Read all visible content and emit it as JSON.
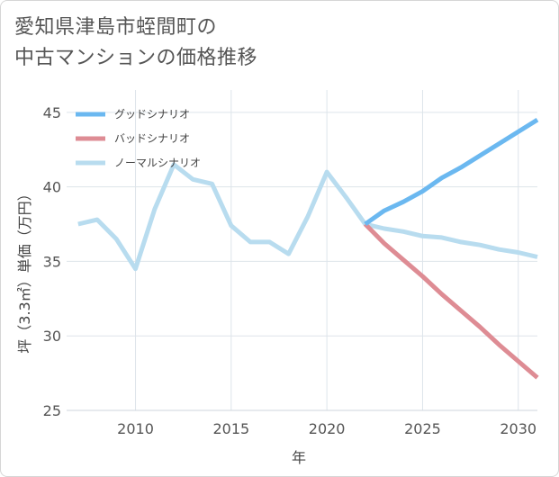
{
  "title_lines": [
    "愛知県津島市蛭間町の",
    "中古マンションの価格推移"
  ],
  "chart_data": {
    "type": "line",
    "title": "愛知県津島市蛭間町の中古マンションの価格推移",
    "xlabel": "年",
    "ylabel": "坪（3.3㎡）単価（万円）",
    "xlim": [
      2006.4,
      2031.0
    ],
    "ylim": [
      25,
      46.5
    ],
    "xticks": [
      2010,
      2015,
      2020,
      2025,
      2030
    ],
    "yticks": [
      25,
      30,
      35,
      40,
      45
    ],
    "grid": true,
    "legend_position": "top-left",
    "series": [
      {
        "name": "グッドシナリオ",
        "color": "#6bb8f0",
        "x": [
          2022,
          2023,
          2024,
          2025,
          2026,
          2027,
          2028,
          2029,
          2030,
          2031
        ],
        "y": [
          37.5,
          38.4,
          39.0,
          39.7,
          40.6,
          41.3,
          42.1,
          42.9,
          43.7,
          44.5
        ]
      },
      {
        "name": "バッドシナリオ",
        "color": "#de8c94",
        "x": [
          2022,
          2023,
          2024,
          2025,
          2026,
          2027,
          2028,
          2029,
          2030,
          2031
        ],
        "y": [
          37.5,
          36.2,
          35.1,
          34.0,
          32.8,
          31.7,
          30.6,
          29.4,
          28.3,
          27.2
        ]
      },
      {
        "name": "ノーマルシナリオ",
        "color": "#b8dcef",
        "x": [
          2007,
          2008,
          2009,
          2010,
          2011,
          2012,
          2013,
          2014,
          2015,
          2016,
          2017,
          2018,
          2019,
          2020,
          2021,
          2022,
          2023,
          2024,
          2025,
          2026,
          2027,
          2028,
          2029,
          2030,
          2031
        ],
        "y": [
          37.5,
          37.8,
          36.5,
          34.5,
          38.5,
          41.5,
          40.5,
          40.2,
          37.4,
          36.3,
          36.3,
          35.5,
          38.0,
          41.0,
          39.3,
          37.5,
          37.2,
          37.0,
          36.7,
          36.6,
          36.3,
          36.1,
          35.8,
          35.6,
          35.3
        ]
      }
    ]
  }
}
